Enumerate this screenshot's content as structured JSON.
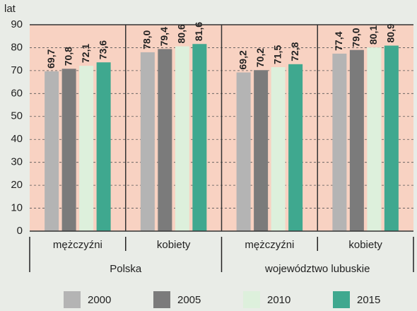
{
  "chart_data": {
    "type": "bar",
    "y_label": "lat",
    "categories": [
      "mężczyźni",
      "kobiety",
      "mężczyźni",
      "kobiety"
    ],
    "groups": [
      "Polska",
      "województwo lubuskie"
    ],
    "series": [
      {
        "name": "2000",
        "color": "#b4b4b4",
        "values": [
          69.7,
          78.0,
          69.2,
          77.4
        ],
        "value_labels": [
          "69,7",
          "78,0",
          "69,2",
          "77,4"
        ]
      },
      {
        "name": "2005",
        "color": "#7b7b7b",
        "values": [
          70.8,
          79.4,
          70.2,
          79.0
        ],
        "value_labels": [
          "70,8",
          "79,4",
          "70,2",
          "79,0"
        ]
      },
      {
        "name": "2010",
        "color": "#ddf0dc",
        "values": [
          72.1,
          80.6,
          71.5,
          80.1
        ],
        "value_labels": [
          "72,1",
          "80,6",
          "71,5",
          "80,1"
        ]
      },
      {
        "name": "2015",
        "color": "#3fa88f",
        "values": [
          73.6,
          81.6,
          72.8,
          80.9
        ],
        "value_labels": [
          "73,6",
          "81,6",
          "72,8",
          "80,9"
        ]
      }
    ],
    "ylim": [
      0,
      90
    ],
    "yticks": [
      0,
      10,
      20,
      30,
      40,
      50,
      60,
      70,
      80,
      90
    ],
    "grid": true
  }
}
